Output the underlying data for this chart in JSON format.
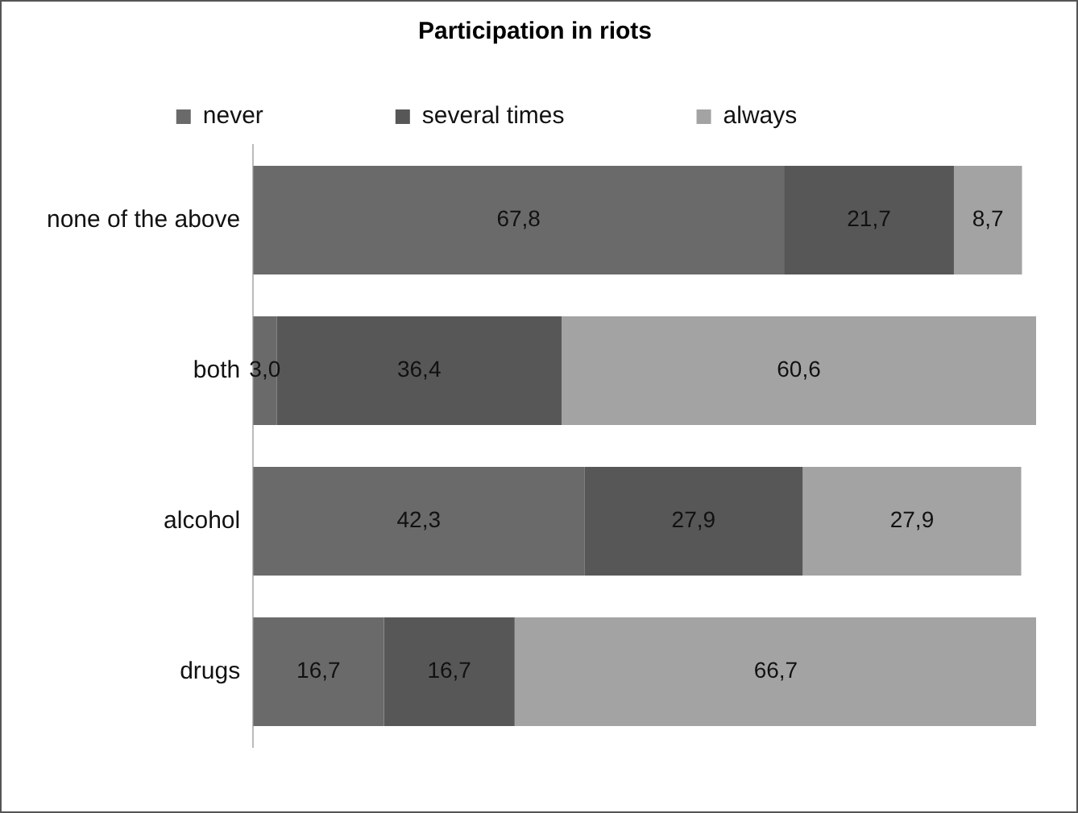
{
  "chart_data": {
    "type": "bar",
    "orientation": "horizontal",
    "stacked": true,
    "title": "Participation in riots",
    "categories": [
      "none of the above",
      "both",
      "alcohol",
      "drugs"
    ],
    "xlim": [
      0,
      100
    ],
    "tick_labels": "y",
    "legend": "top",
    "series": [
      {
        "name": "never",
        "color": "#6a6a6a",
        "values": [
          67.8,
          3.0,
          42.3,
          16.7
        ],
        "value_labels": [
          "67,8",
          "3,0",
          "42,3",
          "16,7"
        ]
      },
      {
        "name": "several times",
        "color": "#575757",
        "values": [
          21.7,
          36.4,
          27.9,
          16.7
        ],
        "value_labels": [
          "21,7",
          "36,4",
          "27,9",
          "16,7"
        ]
      },
      {
        "name": "always",
        "color": "#a3a3a3",
        "values": [
          8.7,
          60.6,
          27.9,
          66.7
        ],
        "value_labels": [
          "8,7",
          "60,6",
          "27,9",
          "66,7"
        ]
      }
    ]
  }
}
